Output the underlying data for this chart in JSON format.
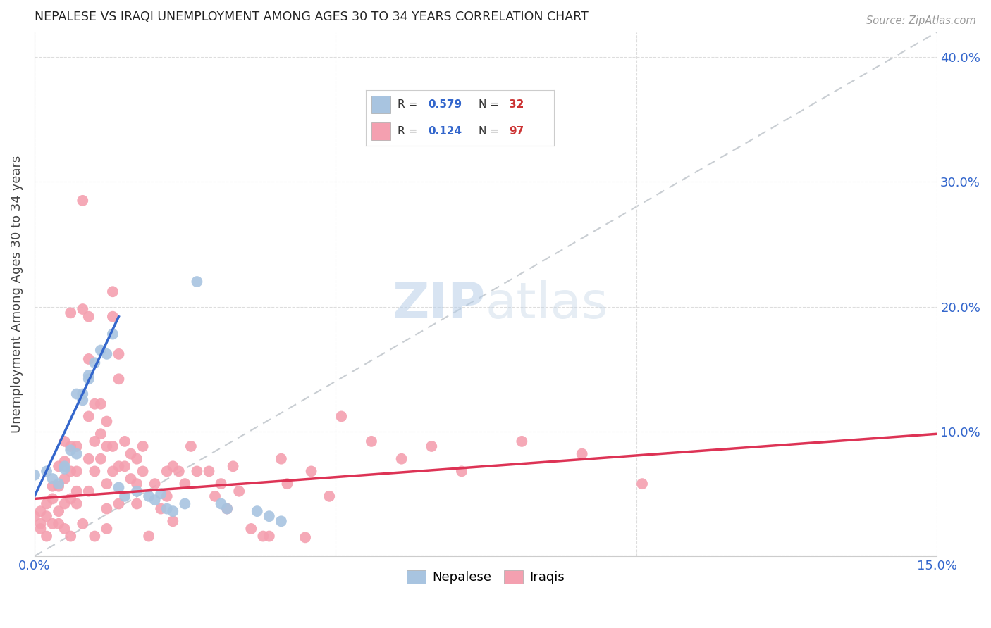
{
  "title": "NEPALESE VS IRAQI UNEMPLOYMENT AMONG AGES 30 TO 34 YEARS CORRELATION CHART",
  "source": "Source: ZipAtlas.com",
  "ylabel": "Unemployment Among Ages 30 to 34 years",
  "xlim": [
    0.0,
    0.15
  ],
  "ylim": [
    0.0,
    0.42
  ],
  "nepalese_color": "#a8c4e0",
  "iraqi_color": "#f4a0b0",
  "nepalese_line_color": "#3366cc",
  "iraqi_line_color": "#dd3355",
  "diagonal_color": "#c8cdd2",
  "text_blue": "#3366cc",
  "text_red": "#cc3333",
  "background_color": "#ffffff",
  "watermark_zip": "ZIP",
  "watermark_atlas": "atlas",
  "nepalese_scatter": [
    [
      0.0,
      0.065
    ],
    [
      0.002,
      0.068
    ],
    [
      0.003,
      0.062
    ],
    [
      0.004,
      0.058
    ],
    [
      0.005,
      0.072
    ],
    [
      0.005,
      0.07
    ],
    [
      0.006,
      0.085
    ],
    [
      0.007,
      0.082
    ],
    [
      0.007,
      0.13
    ],
    [
      0.008,
      0.13
    ],
    [
      0.008,
      0.125
    ],
    [
      0.009,
      0.145
    ],
    [
      0.009,
      0.142
    ],
    [
      0.01,
      0.155
    ],
    [
      0.011,
      0.165
    ],
    [
      0.012,
      0.162
    ],
    [
      0.013,
      0.178
    ],
    [
      0.014,
      0.055
    ],
    [
      0.015,
      0.048
    ],
    [
      0.017,
      0.052
    ],
    [
      0.019,
      0.048
    ],
    [
      0.02,
      0.045
    ],
    [
      0.021,
      0.05
    ],
    [
      0.022,
      0.038
    ],
    [
      0.023,
      0.036
    ],
    [
      0.025,
      0.042
    ],
    [
      0.027,
      0.22
    ],
    [
      0.031,
      0.042
    ],
    [
      0.032,
      0.038
    ],
    [
      0.037,
      0.036
    ],
    [
      0.039,
      0.032
    ],
    [
      0.041,
      0.028
    ]
  ],
  "iraqi_scatter": [
    [
      0.0,
      0.032
    ],
    [
      0.001,
      0.026
    ],
    [
      0.001,
      0.036
    ],
    [
      0.001,
      0.022
    ],
    [
      0.002,
      0.016
    ],
    [
      0.002,
      0.042
    ],
    [
      0.002,
      0.032
    ],
    [
      0.003,
      0.026
    ],
    [
      0.003,
      0.056
    ],
    [
      0.003,
      0.046
    ],
    [
      0.004,
      0.036
    ],
    [
      0.004,
      0.026
    ],
    [
      0.004,
      0.072
    ],
    [
      0.004,
      0.056
    ],
    [
      0.005,
      0.042
    ],
    [
      0.005,
      0.022
    ],
    [
      0.005,
      0.092
    ],
    [
      0.005,
      0.076
    ],
    [
      0.005,
      0.062
    ],
    [
      0.006,
      0.046
    ],
    [
      0.006,
      0.016
    ],
    [
      0.006,
      0.195
    ],
    [
      0.006,
      0.088
    ],
    [
      0.006,
      0.068
    ],
    [
      0.007,
      0.042
    ],
    [
      0.007,
      0.088
    ],
    [
      0.007,
      0.068
    ],
    [
      0.007,
      0.052
    ],
    [
      0.008,
      0.026
    ],
    [
      0.008,
      0.285
    ],
    [
      0.008,
      0.198
    ],
    [
      0.009,
      0.192
    ],
    [
      0.009,
      0.158
    ],
    [
      0.009,
      0.112
    ],
    [
      0.009,
      0.078
    ],
    [
      0.009,
      0.052
    ],
    [
      0.01,
      0.016
    ],
    [
      0.01,
      0.122
    ],
    [
      0.01,
      0.092
    ],
    [
      0.01,
      0.068
    ],
    [
      0.011,
      0.122
    ],
    [
      0.011,
      0.098
    ],
    [
      0.011,
      0.078
    ],
    [
      0.012,
      0.038
    ],
    [
      0.012,
      0.108
    ],
    [
      0.012,
      0.088
    ],
    [
      0.012,
      0.058
    ],
    [
      0.012,
      0.022
    ],
    [
      0.013,
      0.212
    ],
    [
      0.013,
      0.192
    ],
    [
      0.013,
      0.088
    ],
    [
      0.013,
      0.068
    ],
    [
      0.014,
      0.162
    ],
    [
      0.014,
      0.142
    ],
    [
      0.014,
      0.072
    ],
    [
      0.014,
      0.042
    ],
    [
      0.015,
      0.092
    ],
    [
      0.015,
      0.072
    ],
    [
      0.016,
      0.082
    ],
    [
      0.016,
      0.062
    ],
    [
      0.017,
      0.042
    ],
    [
      0.017,
      0.078
    ],
    [
      0.017,
      0.058
    ],
    [
      0.018,
      0.088
    ],
    [
      0.018,
      0.068
    ],
    [
      0.019,
      0.016
    ],
    [
      0.02,
      0.058
    ],
    [
      0.021,
      0.038
    ],
    [
      0.022,
      0.068
    ],
    [
      0.022,
      0.048
    ],
    [
      0.023,
      0.072
    ],
    [
      0.023,
      0.028
    ],
    [
      0.024,
      0.068
    ],
    [
      0.025,
      0.058
    ],
    [
      0.026,
      0.088
    ],
    [
      0.027,
      0.068
    ],
    [
      0.029,
      0.068
    ],
    [
      0.03,
      0.048
    ],
    [
      0.031,
      0.058
    ],
    [
      0.032,
      0.038
    ],
    [
      0.033,
      0.072
    ],
    [
      0.034,
      0.052
    ],
    [
      0.036,
      0.022
    ],
    [
      0.039,
      0.016
    ],
    [
      0.041,
      0.078
    ],
    [
      0.042,
      0.058
    ],
    [
      0.046,
      0.068
    ],
    [
      0.049,
      0.048
    ],
    [
      0.051,
      0.112
    ],
    [
      0.056,
      0.092
    ],
    [
      0.061,
      0.078
    ],
    [
      0.066,
      0.088
    ],
    [
      0.071,
      0.068
    ],
    [
      0.081,
      0.092
    ],
    [
      0.091,
      0.082
    ],
    [
      0.101,
      0.058
    ],
    [
      0.038,
      0.016
    ],
    [
      0.045,
      0.015
    ]
  ],
  "nepalese_line_x": [
    0.0,
    0.014
  ],
  "nepalese_line_y": [
    0.048,
    0.192
  ],
  "iraqi_line_x": [
    0.0,
    0.15
  ],
  "iraqi_line_y": [
    0.046,
    0.098
  ]
}
